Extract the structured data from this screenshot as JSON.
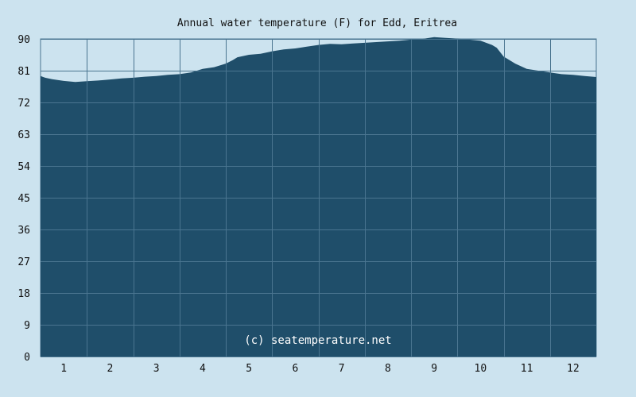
{
  "chart_data": {
    "type": "area",
    "title": "Annual water temperature (F) for Edd, Eritrea",
    "xlabel": "",
    "ylabel": "",
    "xlim": [
      0.5,
      12.5
    ],
    "ylim": [
      0,
      90
    ],
    "y_ticks": [
      0,
      9,
      18,
      27,
      36,
      45,
      54,
      63,
      72,
      81,
      90
    ],
    "x_ticks": [
      1,
      2,
      3,
      4,
      5,
      6,
      7,
      8,
      9,
      10,
      11,
      12
    ],
    "grid": true,
    "watermark": "(c) seatemperature.net",
    "colors": {
      "background": "#cce3ef",
      "plot_fill": "#1f4e6a",
      "grid": "#4a7590",
      "text": "#111111"
    },
    "series": [
      {
        "x": [
          0.5,
          0.6,
          0.75,
          1.0,
          1.25,
          1.5,
          1.75,
          2.0,
          2.25,
          2.5,
          2.75,
          3.0,
          3.25,
          3.5,
          3.75,
          4.0,
          4.25,
          4.5,
          4.65,
          4.75,
          5.0,
          5.25,
          5.5,
          5.75,
          6.0,
          6.25,
          6.5,
          6.75,
          7.0,
          7.25,
          7.5,
          7.75,
          8.0,
          8.25,
          8.5,
          8.75,
          9.0,
          9.25,
          9.5,
          9.75,
          10.0,
          10.25,
          10.35,
          10.5,
          10.75,
          11.0,
          11.25,
          11.5,
          11.75,
          12.0,
          12.25,
          12.5
        ],
        "values": [
          79.5,
          79.0,
          78.6,
          78.1,
          77.8,
          78.0,
          78.2,
          78.5,
          78.8,
          79.0,
          79.3,
          79.5,
          79.8,
          80.0,
          80.5,
          81.5,
          82.0,
          83.0,
          84.0,
          84.8,
          85.5,
          85.8,
          86.5,
          87.0,
          87.3,
          87.8,
          88.3,
          88.6,
          88.5,
          88.7,
          88.9,
          89.1,
          89.3,
          89.5,
          89.8,
          90.0,
          90.5,
          90.3,
          90.1,
          89.8,
          89.5,
          88.3,
          87.5,
          85.0,
          83.0,
          81.5,
          81.0,
          80.5,
          80.0,
          79.8,
          79.5,
          79.2
        ]
      }
    ]
  }
}
